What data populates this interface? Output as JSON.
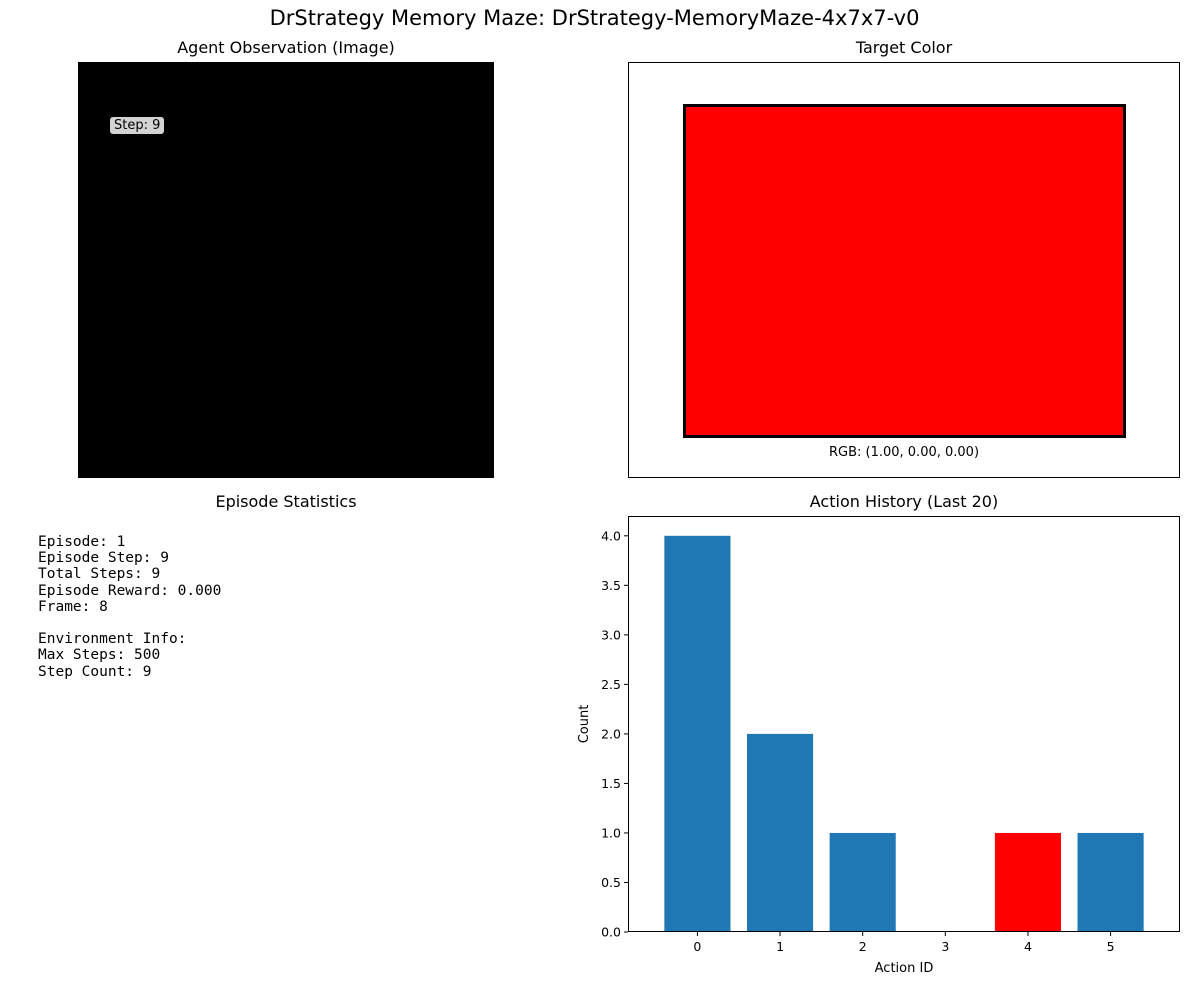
{
  "figure": {
    "suptitle": "DrStrategy Memory Maze: DrStrategy-MemoryMaze-4x7x7-v0"
  },
  "observation": {
    "title": "Agent Observation (Image)",
    "step_label": "Step: 9",
    "frame_color": "#000000"
  },
  "target": {
    "title": "Target Color",
    "color": "#ff0000",
    "rgb_label": "RGB: (1.00, 0.00, 0.00)"
  },
  "stats": {
    "title": "Episode Statistics",
    "lines": [
      "Episode: 1",
      "Episode Step: 9",
      "Total Steps: 9",
      "Episode Reward: 0.000",
      "Frame: 8",
      "",
      "Environment Info:",
      "Max Steps: 500",
      "Step Count: 9"
    ]
  },
  "chart_data": {
    "type": "bar",
    "title": "Action History (Last 20)",
    "xlabel": "Action ID",
    "ylabel": "Count",
    "categories": [
      "0",
      "1",
      "2",
      "3",
      "4",
      "5"
    ],
    "values": [
      4,
      2,
      1,
      0,
      1,
      1
    ],
    "bar_colors": [
      "#1f77b4",
      "#1f77b4",
      "#1f77b4",
      "#1f77b4",
      "#ff0000",
      "#1f77b4"
    ],
    "highlighted_action": 4,
    "ylim": [
      0,
      4.2
    ],
    "yticks": [
      "0.0",
      "0.5",
      "1.0",
      "1.5",
      "2.0",
      "2.5",
      "3.0",
      "3.5",
      "4.0"
    ],
    "grid": false
  }
}
